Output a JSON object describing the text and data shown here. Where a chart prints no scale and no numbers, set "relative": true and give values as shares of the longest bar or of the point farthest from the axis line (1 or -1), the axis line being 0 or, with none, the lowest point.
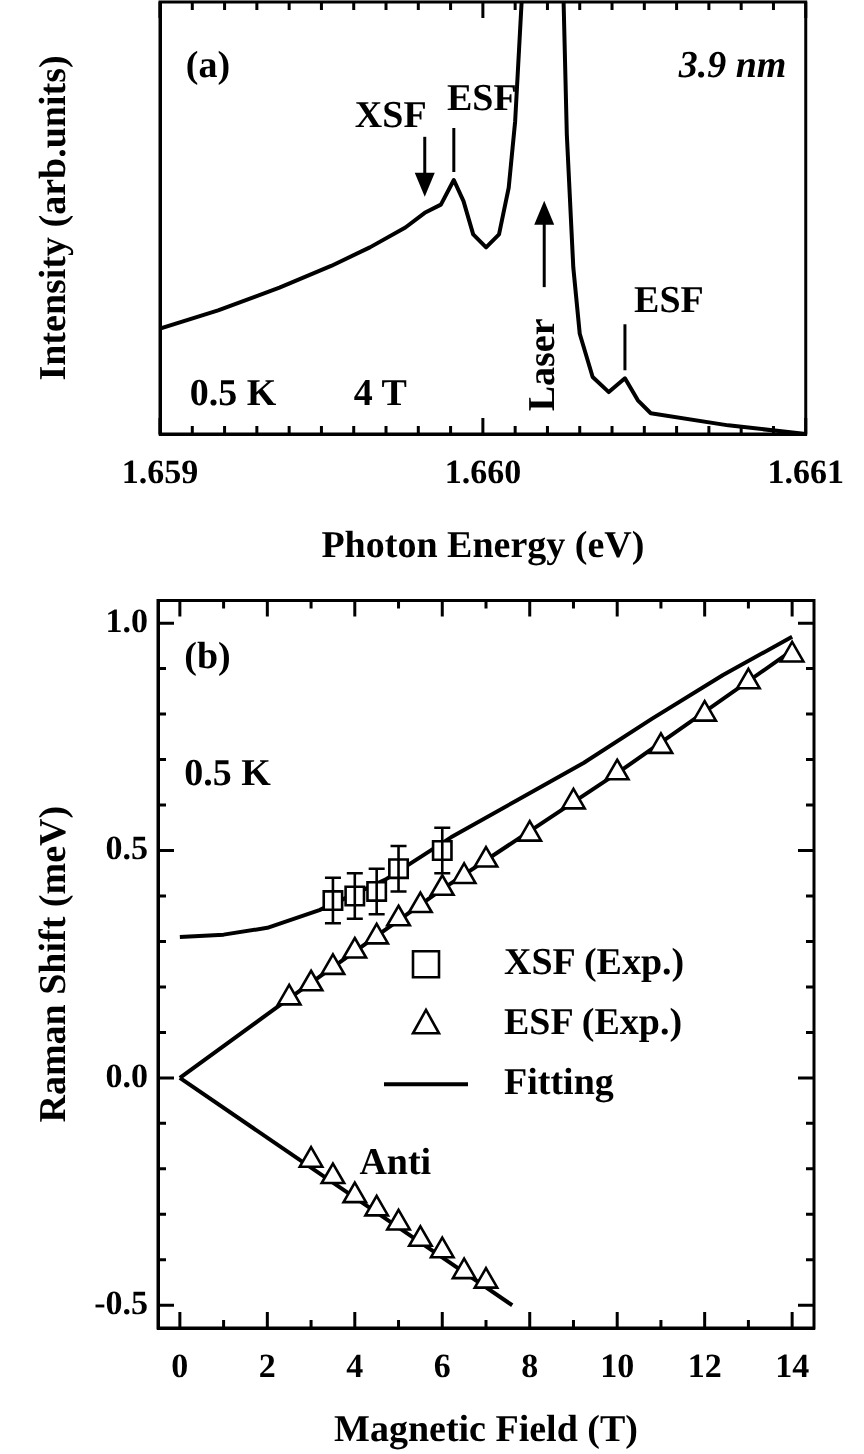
{
  "chart_data": [
    {
      "type": "line",
      "xlabel": "Photon Energy (eV)",
      "ylabel": "Intensity (arb.units)",
      "relative": true,
      "color": "#000000",
      "tick_labels": "x",
      "x": [
        1.659,
        1.65918,
        1.65937,
        1.65953,
        1.65965,
        1.65976,
        1.65982,
        1.65987,
        1.65991,
        1.65994,
        1.65997,
        1.66001,
        1.66005,
        1.66008,
        1.6601,
        1.66012,
        1.66019,
        1.66025,
        1.66026,
        1.66028,
        1.6603,
        1.66034,
        1.66039,
        1.66044,
        1.66048,
        1.66052,
        1.66076,
        1.661
      ],
      "values": [
        0.244,
        0.286,
        0.339,
        0.389,
        0.432,
        0.478,
        0.512,
        0.531,
        0.588,
        0.539,
        0.462,
        0.432,
        0.462,
        0.57,
        0.724,
        1,
        null,
        1,
        0.693,
        0.386,
        0.232,
        0.132,
        0.097,
        0.129,
        0.078,
        0.048,
        0.02,
        0
      ],
      "xlim": [
        1.659,
        1.661
      ],
      "xticks": [
        1.659,
        {
          "value": 1.6591,
          "label": null
        },
        {
          "value": 1.6592,
          "label": null
        },
        {
          "value": 1.6593,
          "label": null
        },
        {
          "value": 1.6594,
          "label": null
        },
        {
          "value": 1.6595,
          "label": null
        },
        {
          "value": 1.6596,
          "label": null
        },
        {
          "value": 1.6597,
          "label": null
        },
        {
          "value": 1.6598,
          "label": null
        },
        {
          "value": 1.6599,
          "label": null
        },
        {
          "value": 1.66,
          "label": "1.660"
        },
        {
          "value": 1.6601,
          "label": null
        },
        {
          "value": 1.6602,
          "label": null
        },
        {
          "value": 1.6603,
          "label": null
        },
        {
          "value": 1.6604,
          "label": null
        },
        {
          "value": 1.6605,
          "label": null
        },
        {
          "value": 1.6606,
          "label": null
        },
        {
          "value": 1.6607,
          "label": null
        },
        {
          "value": 1.6608,
          "label": null
        },
        {
          "value": 1.6609,
          "label": null
        },
        1.661
      ],
      "annotations": [
        "(a)",
        "3.9 nm",
        {
          "text": "XSF",
          "x": 1.65982,
          "y": 0.512
        },
        {
          "text": "ESF",
          "x": 1.65991,
          "y": 0.588
        },
        "Laser",
        {
          "text": "ESF",
          "x": 1.66044,
          "y": 0.129
        },
        "0.5 K",
        "4 T"
      ]
    },
    {
      "type": "scatter",
      "xlabel": "Magnetic Field (T)",
      "ylabel": "Raman Shift (meV)",
      "legend": "right",
      "xlim": [
        -0.5,
        14.5
      ],
      "ylim": [
        -0.55,
        1.05
      ],
      "xticks": [
        0,
        {
          "value": 1,
          "label": null
        },
        2,
        {
          "value": 3,
          "label": null
        },
        4,
        {
          "value": 5,
          "label": null
        },
        6,
        {
          "value": 7,
          "label": null
        },
        8,
        {
          "value": 9,
          "label": null
        },
        10,
        {
          "value": 11,
          "label": null
        },
        12,
        {
          "value": 13,
          "label": null
        },
        14
      ],
      "yticks": [
        -0.5,
        {
          "value": -0.4,
          "label": null
        },
        {
          "value": -0.3,
          "label": null
        },
        {
          "value": -0.2,
          "label": null
        },
        {
          "value": -0.1,
          "label": null
        },
        {
          "value": 0,
          "label": "0.0"
        },
        {
          "value": 0.1,
          "label": null
        },
        {
          "value": 0.2,
          "label": null
        },
        {
          "value": 0.3,
          "label": null
        },
        {
          "value": 0.4,
          "label": null
        },
        0.5,
        {
          "value": 0.6,
          "label": null
        },
        {
          "value": 0.7,
          "label": null
        },
        {
          "value": 0.8,
          "label": null
        },
        {
          "value": 0.9,
          "label": null
        },
        {
          "value": 1,
          "label": "1.0"
        }
      ],
      "series": [
        {
          "name": "XSF (Exp.)",
          "marker": "square",
          "color": "#000000",
          "x": [
            3.5,
            4,
            4.5,
            5,
            6
          ],
          "values": [
            0.39,
            0.4,
            0.41,
            0.46,
            0.5
          ],
          "errors": [
            0.05,
            0.05,
            0.05,
            0.05,
            0.05
          ]
        },
        {
          "name": "ESF (Exp.)",
          "marker": "triangle",
          "color": "#000000",
          "x": [
            2.5,
            3,
            3.5,
            4,
            4.5,
            5,
            5.5,
            6,
            6.5,
            7,
            8,
            9,
            10,
            11,
            12,
            13,
            14
          ],
          "values": [
            0.176,
            0.207,
            0.243,
            0.279,
            0.31,
            0.35,
            0.379,
            0.417,
            0.443,
            0.479,
            0.536,
            0.607,
            0.671,
            0.729,
            0.8,
            0.871,
            0.93
          ]
        },
        {
          "marker": "triangle",
          "color": "#000000",
          "x": [
            3,
            3.5,
            4,
            4.5,
            5,
            5.5,
            6,
            6.5,
            7
          ],
          "values": [
            -0.181,
            -0.217,
            -0.259,
            -0.288,
            -0.319,
            -0.355,
            -0.38,
            -0.426,
            -0.447
          ]
        },
        {
          "name": "Fitting",
          "type": "line",
          "marker": "none",
          "color": "#000000",
          "x": [
            0,
            1,
            2,
            3.19,
            4.7,
            6.2,
            7.7,
            9.24,
            10.8,
            12.42,
            14
          ],
          "values": [
            0.31,
            0.315,
            0.33,
            0.369,
            0.436,
            0.529,
            0.61,
            0.693,
            0.79,
            0.886,
            0.97
          ]
        },
        {
          "type": "line",
          "marker": "none",
          "color": "#000000",
          "x": [
            0,
            2.5,
            6,
            10,
            14
          ],
          "values": [
            0,
            0.175,
            0.415,
            0.67,
            0.94
          ]
        },
        {
          "type": "line",
          "marker": "none",
          "color": "#000000",
          "x": [
            0,
            7.6
          ],
          "values": [
            0,
            -0.5
          ]
        }
      ],
      "annotations": [
        "(b)",
        "0.5 K",
        "Anti"
      ]
    }
  ]
}
